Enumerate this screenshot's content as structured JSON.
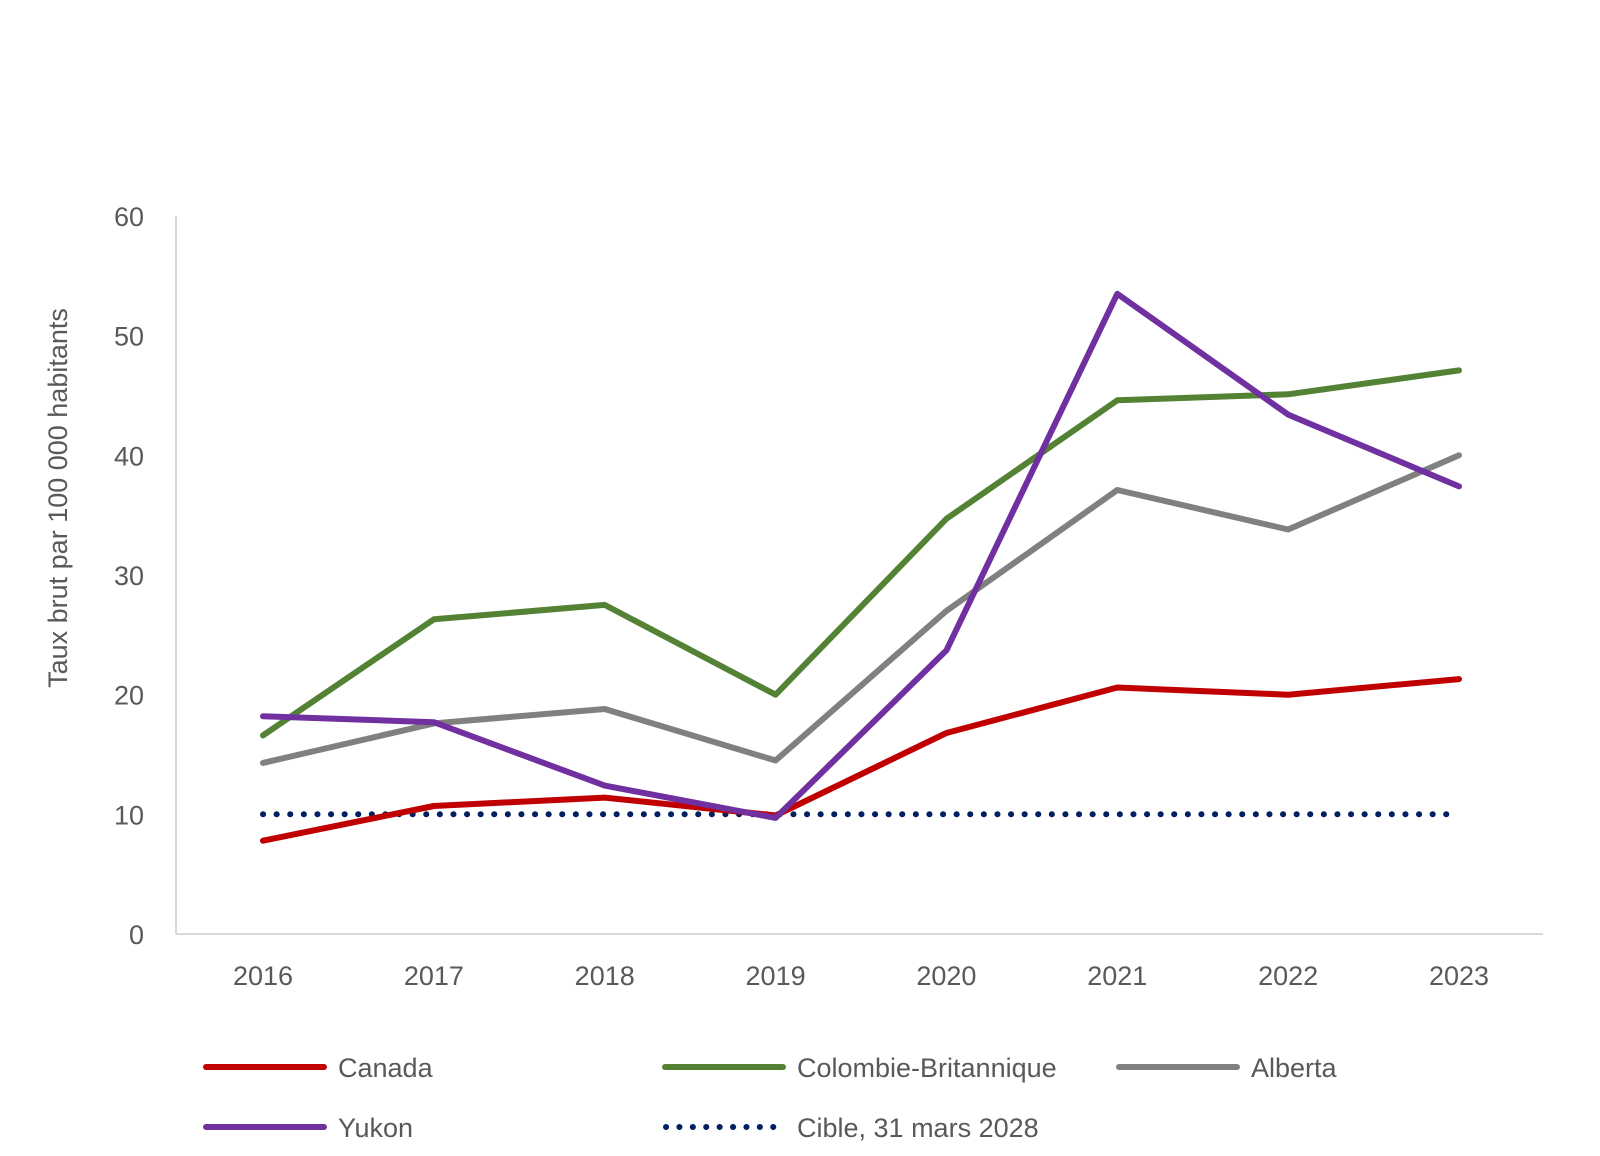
{
  "chart_data": {
    "type": "line",
    "title": "",
    "xlabel": "",
    "ylabel": "Taux brut par 100 000 habitants",
    "x": [
      "2016",
      "2017",
      "2018",
      "2019",
      "2020",
      "2021",
      "2022",
      "2023"
    ],
    "ylim": [
      0,
      60
    ],
    "yticks": [
      0,
      10,
      20,
      30,
      40,
      50,
      60
    ],
    "grid": false,
    "legend_position": "bottom",
    "series": [
      {
        "name": "Canada",
        "color": "#C00000",
        "style": "solid",
        "values": [
          7.8,
          10.7,
          11.4,
          9.9,
          16.8,
          20.6,
          20.0,
          21.3
        ]
      },
      {
        "name": "Colombie-Britannique",
        "color": "#548235",
        "style": "solid",
        "values": [
          16.6,
          26.3,
          27.5,
          20.0,
          34.7,
          44.6,
          45.1,
          47.1
        ]
      },
      {
        "name": "Alberta",
        "color": "#808080",
        "style": "solid",
        "values": [
          14.3,
          17.6,
          18.8,
          14.5,
          27.0,
          37.1,
          33.8,
          40.0
        ]
      },
      {
        "name": "Yukon",
        "color": "#7030A0",
        "style": "solid",
        "values": [
          18.2,
          17.7,
          12.4,
          9.7,
          23.7,
          53.5,
          43.4,
          37.4
        ]
      },
      {
        "name": "Cible, 31 mars 2028",
        "color": "#002060",
        "style": "dotted",
        "values": [
          10,
          10,
          10,
          10,
          10,
          10,
          10,
          10
        ]
      }
    ]
  }
}
